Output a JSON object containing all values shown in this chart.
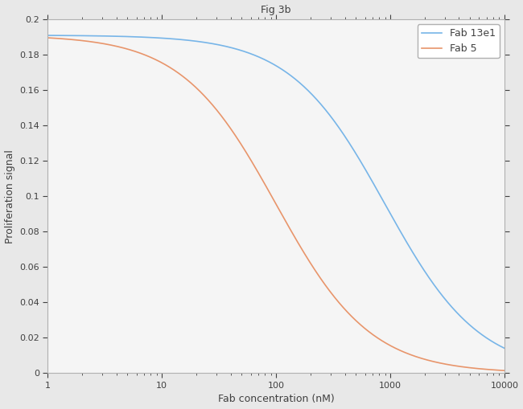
{
  "title": "Fig 3b",
  "xlabel": "Fab concentration (nM)",
  "ylabel": "Proliferation signal",
  "xlim": [
    1,
    10000
  ],
  "ylim": [
    0,
    0.2
  ],
  "yticks": [
    0,
    0.02,
    0.04,
    0.06,
    0.08,
    0.1,
    0.12,
    0.14,
    0.16,
    0.18,
    0.2
  ],
  "xticks": [
    1,
    10,
    100,
    1000,
    10000
  ],
  "curves": [
    {
      "label": "Fab 13e1",
      "color": "#77B5E8",
      "Emax": 0.191,
      "Emin": 0.0,
      "IC50": 900,
      "hill": 1.05
    },
    {
      "label": "Fab 5",
      "color": "#E8956B",
      "Emax": 0.191,
      "Emin": 0.0,
      "IC50": 100,
      "hill": 1.05
    }
  ],
  "legend_loc": "upper right",
  "background_color": "#ffffff",
  "axes_bg_color": "#f5f5f5",
  "grid_color": "#ffffff",
  "spine_color": "#b0b0b0",
  "title_fontsize": 9,
  "label_fontsize": 9,
  "tick_fontsize": 8,
  "legend_fontsize": 9,
  "linewidth": 1.2
}
